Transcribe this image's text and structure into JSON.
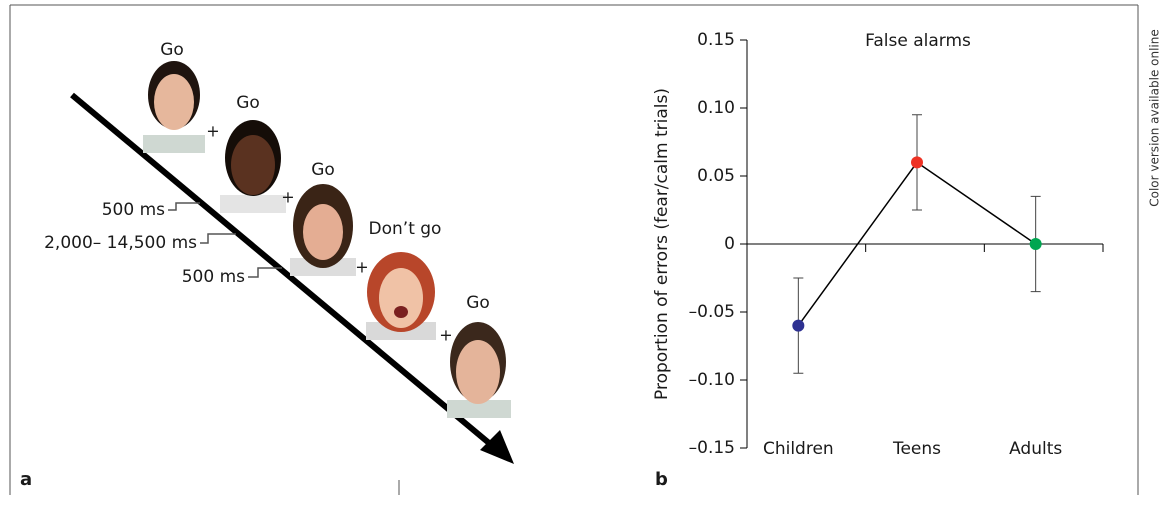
{
  "panel_a": {
    "label": "a",
    "cue_labels": [
      "Go",
      "Go",
      "Go",
      "Don’t go",
      "Go"
    ],
    "fixation_mark": "+",
    "timings": [
      "500 ms",
      "2,000– 14,500 ms",
      "500 ms"
    ]
  },
  "side_note": "Color version available online",
  "chart_data": {
    "type": "line",
    "panel_label": "b",
    "title": "False alarms",
    "y_label": "Proportion of errors (fear/calm trials)",
    "categories": [
      "Children",
      "Teens",
      "Adults"
    ],
    "values": [
      -0.06,
      0.06,
      0.0
    ],
    "errors": [
      0.035,
      0.035,
      0.035
    ],
    "point_colors": [
      "#2e3192",
      "#ee3224",
      "#00a651"
    ],
    "color": "#000000",
    "ylim": [
      -0.15,
      0.15
    ],
    "yticks": [
      {
        "value": -0.15,
        "label": "–0.15"
      },
      {
        "value": -0.1,
        "label": "–0.10"
      },
      {
        "value": -0.05,
        "label": "–0.05"
      },
      0,
      0.05,
      {
        "value": 0.1,
        "label": "0.10"
      },
      0.15
    ]
  }
}
